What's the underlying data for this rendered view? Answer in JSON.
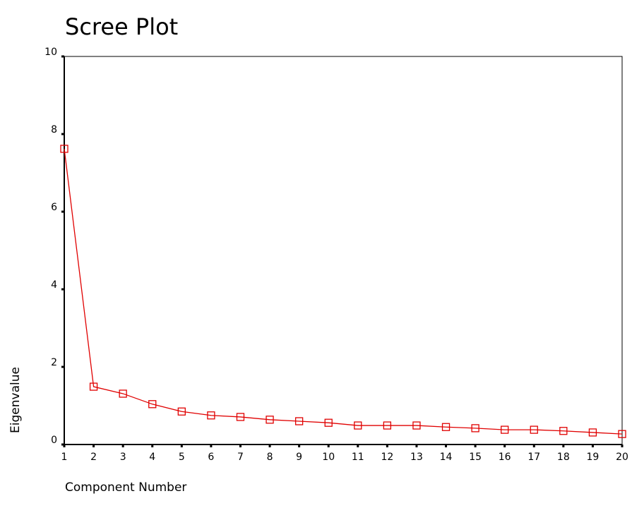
{
  "chart_data": {
    "type": "line",
    "title": "Scree Plot",
    "x_label": "Component Number",
    "y_label": "Eigenvalue",
    "x": [
      1,
      2,
      3,
      4,
      5,
      6,
      7,
      8,
      9,
      10,
      11,
      12,
      13,
      14,
      15,
      16,
      17,
      18,
      19,
      20
    ],
    "series": [
      {
        "color": "#e00000",
        "values": [
          7.62,
          1.49,
          1.31,
          1.04,
          0.85,
          0.75,
          0.71,
          0.64,
          0.6,
          0.56,
          0.49,
          0.49,
          0.49,
          0.45,
          0.42,
          0.38,
          0.38,
          0.35,
          0.31,
          0.27
        ]
      }
    ],
    "xlim": [
      1,
      20
    ],
    "xticks": [
      1,
      2,
      3,
      4,
      5,
      6,
      7,
      8,
      9,
      10,
      11,
      12,
      13,
      14,
      15,
      16,
      17,
      18,
      19,
      20
    ],
    "ylim": [
      0,
      10
    ],
    "yticks": [
      0,
      2,
      4,
      6,
      8,
      10
    ]
  }
}
